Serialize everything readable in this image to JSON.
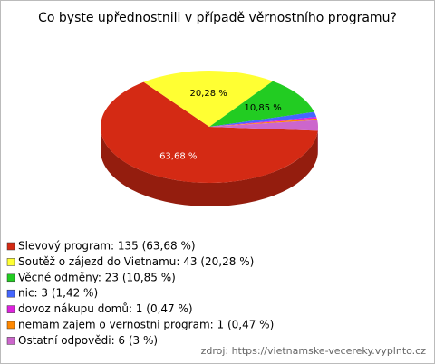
{
  "chart_data": {
    "type": "pie3d",
    "title": "Co byste upřednostnili v případě věrnostního programu?",
    "categories": [
      "Slevový program",
      "Soutěž o zájezd do Vietnamu",
      "Věcné odměny",
      "nic",
      "dovoz nákupu domů",
      "nemam zajem o vernostni program",
      "Ostatní odpovědi"
    ],
    "legend_labels": [
      "Slevový program: 135 (63,68 %)",
      "Soutěž o zájezd do Vietnamu: 43 (20,28 %)",
      "Věcné odměny: 23 (10,85 %)",
      "nic: 3 (1,42 %)",
      "dovoz nákupu domů: 1 (0,47 %)",
      "nemam zajem o vernostni program: 1 (0,47 %)",
      "Ostatní odpovědi: 6 (3 %)"
    ],
    "values": [
      63.68,
      20.28,
      10.85,
      1.42,
      0.47,
      0.47,
      3
    ],
    "value_labels": [
      "63,68 %",
      "20,28 %",
      "10,85 %",
      null,
      null,
      null,
      null
    ],
    "colors": [
      "#d42a14",
      "#ffff33",
      "#22cc22",
      "#4466ff",
      "#dd22dd",
      "#ff8800",
      "#cc66cc"
    ],
    "source": "zdroj: https://vietnamske-vecereky.vyplnto.cz"
  }
}
